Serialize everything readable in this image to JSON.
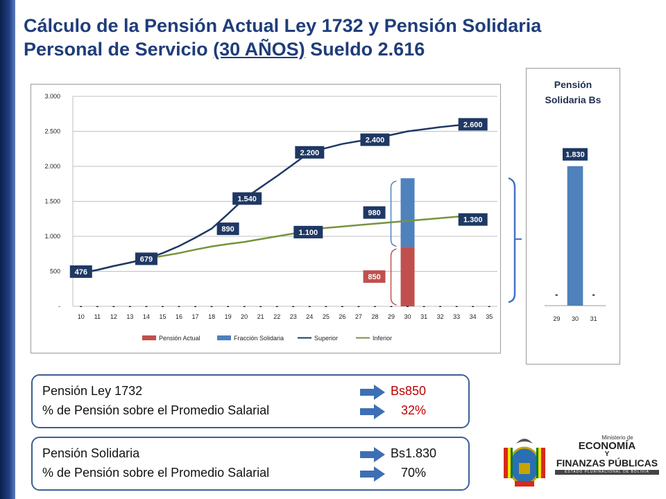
{
  "slide": {
    "title_line1": "Cálculo de la Pensión Actual Ley 1732 y Pensión Solidaria",
    "title_line2_pre": "Personal de Servicio ",
    "title_line2_underlined": "(30 AÑOS)",
    "title_line2_post": " Sueldo 2.616"
  },
  "colors": {
    "title": "#1f3d7a",
    "pension_actual": "#c0504d",
    "fraccion_solidaria": "#4f81bd",
    "superior": "#1f3864",
    "inferior": "#77933c",
    "label_bg": "#1f3864",
    "highlight_red": "#c00000"
  },
  "chart_data": [
    {
      "type": "line",
      "ylim": [
        0,
        3000
      ],
      "yticks": [
        "3.000",
        "2.500",
        "2.000",
        "1.500",
        "1.000",
        "500",
        "-"
      ],
      "ytick_values": [
        3000,
        2500,
        2000,
        1500,
        1000,
        500,
        0
      ],
      "x": [
        10,
        11,
        12,
        13,
        14,
        15,
        16,
        17,
        18,
        19,
        20,
        21,
        22,
        23,
        24,
        25,
        26,
        27,
        28,
        29,
        30,
        31,
        32,
        33,
        34,
        35
      ],
      "xticks": [
        "10",
        "11",
        "12",
        "13",
        "14",
        "15",
        "16",
        "17",
        "18",
        "19",
        "20",
        "21",
        "22",
        "23",
        "24",
        "25",
        "26",
        "27",
        "28",
        "29",
        "30",
        "31",
        "32",
        "33",
        "34",
        "35"
      ],
      "series": [
        {
          "name": "Pensión Actual",
          "kind": "bar",
          "values": [
            0,
            0,
            0,
            0,
            0,
            0,
            0,
            0,
            0,
            0,
            0,
            0,
            0,
            0,
            0,
            0,
            0,
            0,
            0,
            0,
            850,
            0,
            0,
            0,
            0,
            0
          ]
        },
        {
          "name": "Fracción Solidaria",
          "kind": "bar",
          "values": [
            0,
            0,
            0,
            0,
            0,
            0,
            0,
            0,
            0,
            0,
            0,
            0,
            0,
            0,
            0,
            0,
            0,
            0,
            0,
            0,
            980,
            0,
            0,
            0,
            0,
            0
          ]
        },
        {
          "name": "Superior",
          "kind": "line",
          "values": [
            476,
            520,
            575,
            625,
            679,
            760,
            860,
            980,
            1110,
            1320,
            1540,
            1700,
            1860,
            2030,
            2200,
            2260,
            2320,
            2360,
            2400,
            2450,
            2500,
            2530,
            2560,
            2585,
            2600,
            null
          ]
        },
        {
          "name": "Inferior",
          "kind": "line",
          "values": [
            476,
            520,
            575,
            625,
            679,
            720,
            760,
            810,
            855,
            890,
            920,
            960,
            1000,
            1040,
            1100,
            1120,
            1140,
            1160,
            1180,
            1200,
            1220,
            1240,
            1260,
            1280,
            1300,
            null
          ]
        }
      ],
      "data_labels": [
        {
          "text": "476",
          "x": 10,
          "y": 476
        },
        {
          "text": "679",
          "x": 14,
          "y": 679
        },
        {
          "text": "890",
          "x": 19,
          "y": 890
        },
        {
          "text": "1.540",
          "x": 20,
          "y": 1540
        },
        {
          "text": "1.100",
          "x": 24,
          "y": 1100
        },
        {
          "text": "2.200",
          "x": 24,
          "y": 2200
        },
        {
          "text": "2.400",
          "x": 28,
          "y": 2400
        },
        {
          "text": "2.600",
          "x": 34,
          "y": 2600
        },
        {
          "text": "1.300",
          "x": 34,
          "y": 1300
        },
        {
          "text": "980",
          "x": 30,
          "y": 1340
        },
        {
          "text": "850",
          "x": 30,
          "y": 425
        }
      ],
      "dash_labels": "-",
      "legend": [
        "Pensión Actual",
        "Fracción Solidaria",
        "Superior",
        "Inferior"
      ],
      "legend_position": "bottom",
      "grid": true
    },
    {
      "type": "bar",
      "title": "Pensión Solidaria Bs",
      "categories": [
        "29",
        "30",
        "31"
      ],
      "values": [
        0,
        1830,
        0
      ],
      "value_labels": [
        "-",
        "1.830",
        "-"
      ],
      "ylim": [
        0,
        2200
      ]
    }
  ],
  "summary": [
    {
      "rows": [
        {
          "label": "Pensión Ley 1732",
          "value": "Bs850",
          "value_color": "#c00000"
        },
        {
          "label": "% de Pensión sobre el Promedio Salarial",
          "value": "   32%",
          "value_color": "#c00000"
        }
      ]
    },
    {
      "rows": [
        {
          "label": "Pensión Solidaria",
          "value": "Bs1.830",
          "value_color": "#111111"
        },
        {
          "label": "% de Pensión sobre el Promedio Salarial",
          "value": "   70%",
          "value_color": "#111111"
        }
      ]
    }
  ],
  "logo": {
    "line1": "Ministerio de",
    "line2": "ECONOMÍA",
    "line3": "Y",
    "line4": "FINANZAS PÚBLICAS",
    "line5": "ESTADO PLURINACIONAL DE BOLIVIA"
  }
}
